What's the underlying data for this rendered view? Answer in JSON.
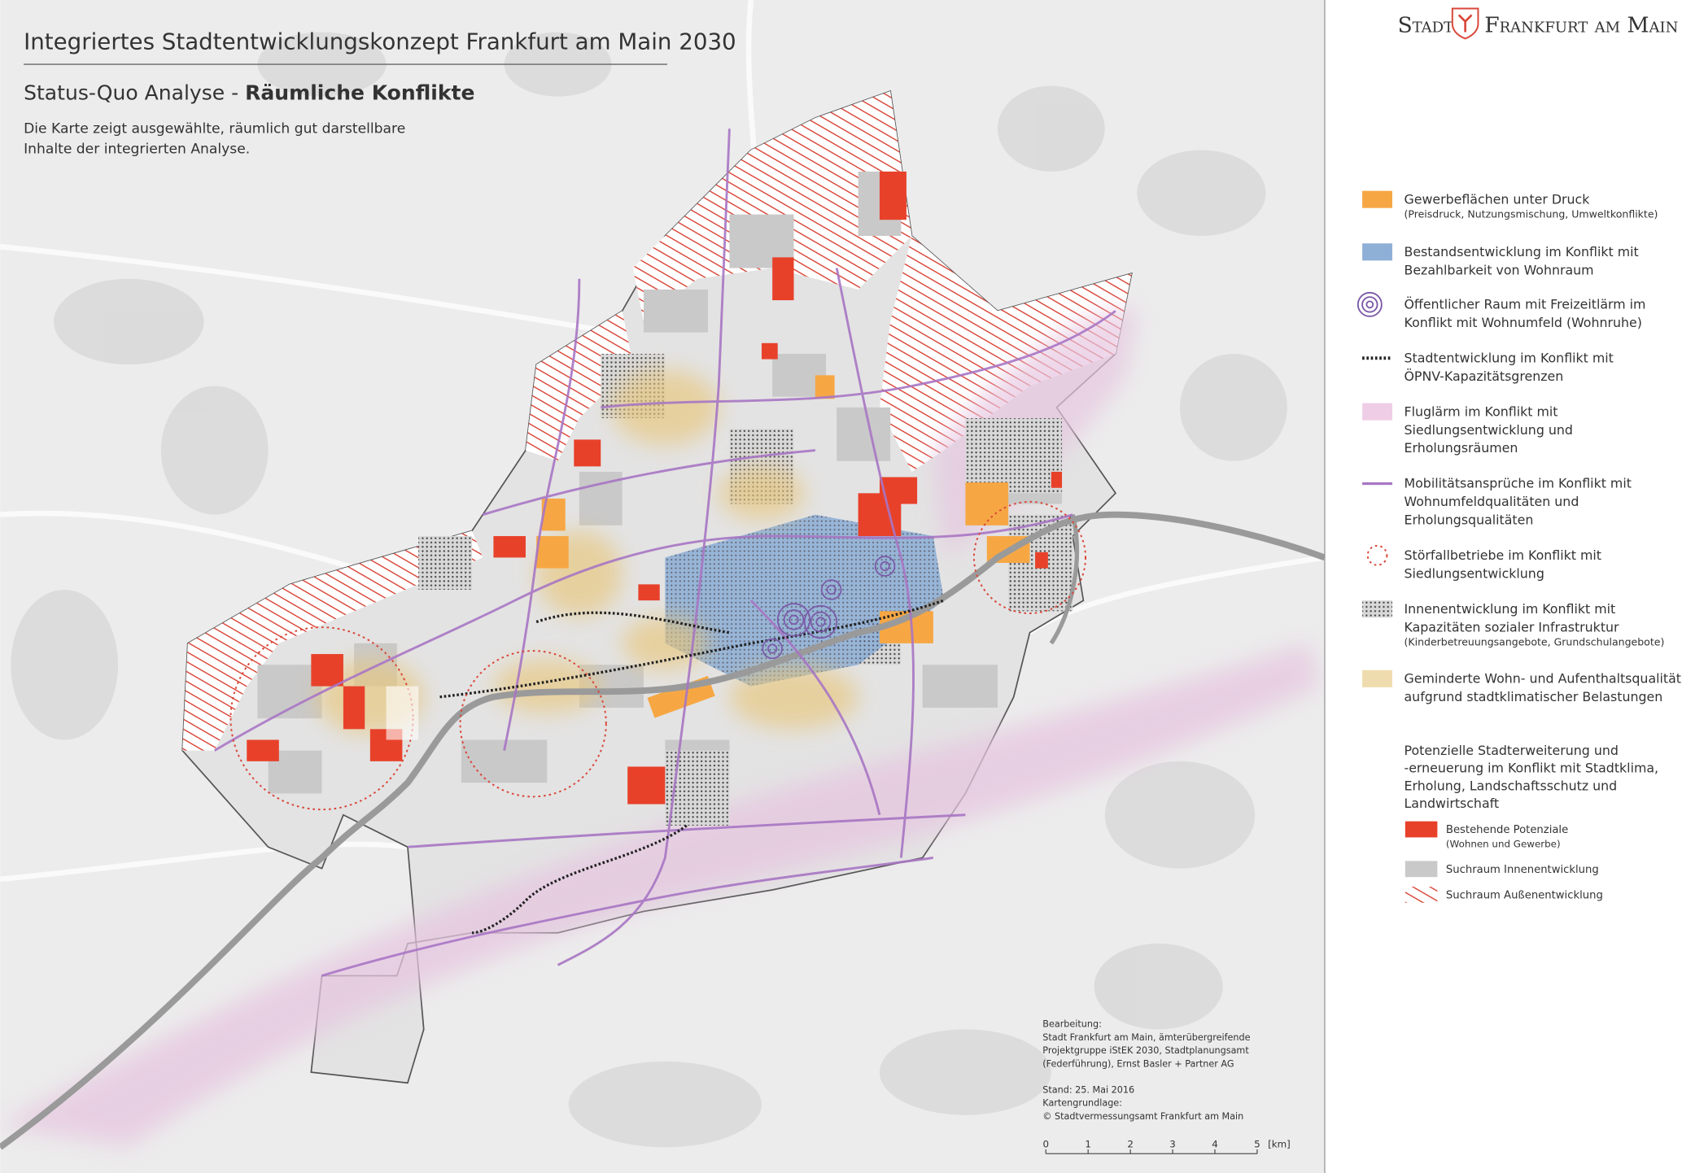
{
  "header": {
    "title": "Integriertes Stadtentwicklungskonzept Frankfurt am Main 2030",
    "subtitle_prefix": "Status-Quo Analyse - ",
    "subtitle_bold": "Räumliche Konflikte",
    "description": [
      "Die Karte zeigt ausgewählte, räumlich gut darstellbare",
      "Inhalte der integrierten Analyse."
    ]
  },
  "logo": {
    "part1": "Stadt",
    "part2": "Frankfurt am Main"
  },
  "legend": {
    "items": [
      {
        "lines": [
          "Gewerbeflächen unter Druck"
        ],
        "note": "(Preisdruck, Nutzungsmischung, Umweltkonflikte)"
      },
      {
        "lines": [
          "Bestandsentwicklung im Konflikt mit",
          "Bezahlbarkeit von Wohnraum"
        ]
      },
      {
        "lines": [
          "Öffentlicher Raum mit Freizeitlärm im",
          "Konflikt mit Wohnumfeld (Wohnruhe)"
        ]
      },
      {
        "lines": [
          "Stadtentwicklung im Konflikt mit",
          "ÖPNV-Kapazitätsgrenzen"
        ]
      },
      {
        "lines": [
          "Fluglärm im Konflikt mit",
          "Siedlungsentwicklung und",
          "Erholungsräumen"
        ]
      },
      {
        "lines": [
          "Mobilitätsansprüche im Konflikt mit",
          "Wohnumfeldqualitäten und",
          "Erholungsqualitäten"
        ]
      },
      {
        "lines": [
          "Störfallbetriebe im Konflikt mit",
          "Siedlungsentwicklung"
        ]
      },
      {
        "lines": [
          "Innenentwicklung im Konflikt mit",
          "Kapazitäten sozialer Infrastruktur"
        ],
        "note": "(Kinderbetreuungsangebote, Grundschulangebote)"
      },
      {
        "lines": [
          "Geminderte Wohn- und Aufenthaltsqualität",
          "aufgrund stadtklimatischer Belastungen"
        ]
      }
    ],
    "subheading": [
      "Potenzielle Stadterweiterung und",
      "-erneuerung im Konflikt mit Stadtklima,",
      "Erholung, Landschaftsschutz und",
      "Landwirtschaft"
    ],
    "sub_items": [
      {
        "lines": [
          "Bestehende Potenziale"
        ],
        "note": "(Wohnen und Gewerbe)"
      },
      {
        "lines": [
          "Suchraum Innenentwicklung"
        ]
      },
      {
        "lines": [
          "Suchraum Außenentwicklung"
        ]
      }
    ]
  },
  "credits": {
    "blocks": [
      [
        "Bearbeitung:",
        "Stadt Frankfurt am Main, ämterübergreifende",
        "Projektgruppe iStEK 2030, Stadtplanungsamt",
        "(Federführung), Ernst Basler + Partner AG"
      ],
      [
        "Stand: 25. Mai 2016",
        "Kartengrundlage:",
        "© Stadtvermessungsamt Frankfurt am Main"
      ]
    ]
  },
  "scale_bar": {
    "ticks": [
      0,
      1,
      2,
      3,
      4,
      5
    ],
    "unit": "[km]"
  }
}
